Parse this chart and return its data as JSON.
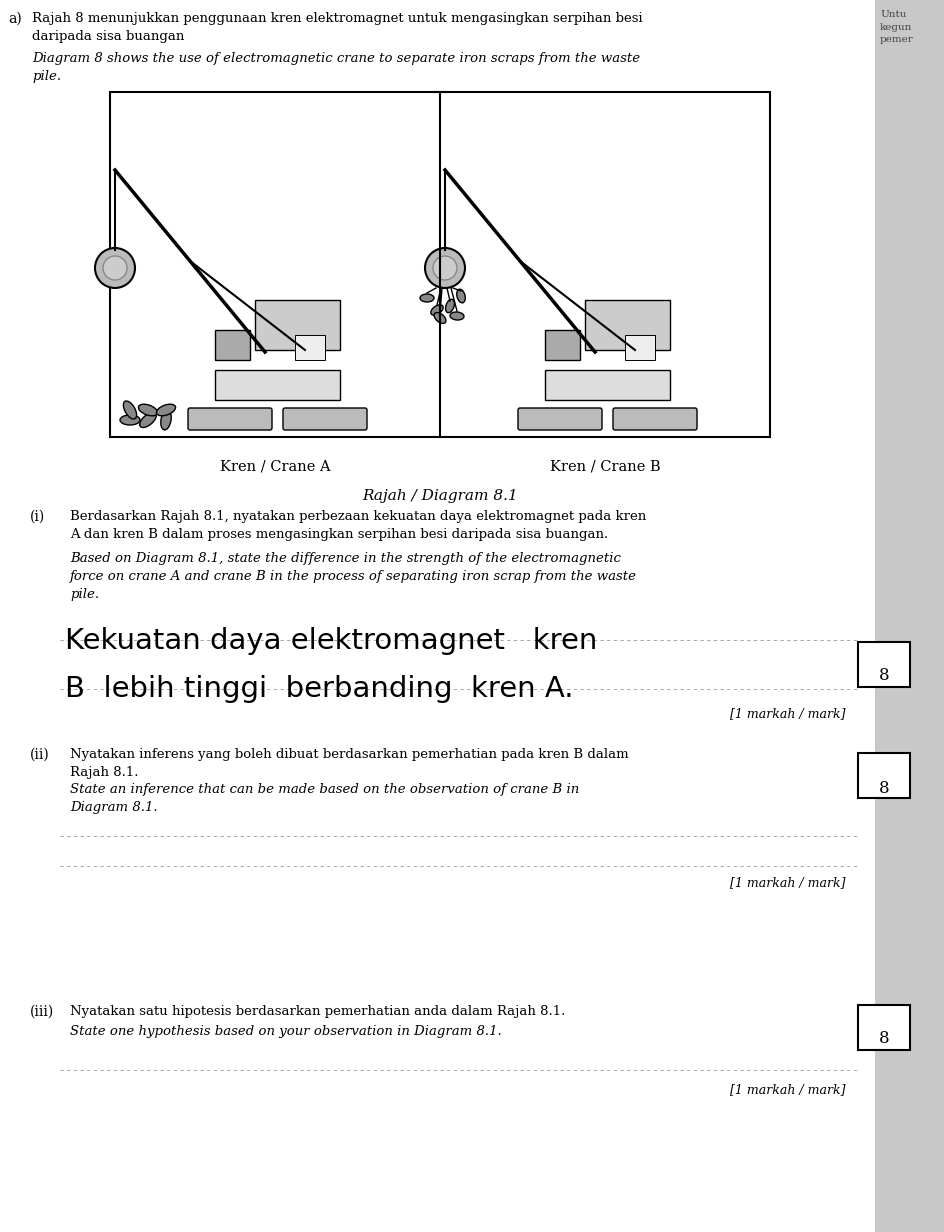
{
  "bg_color": "#d8d8d8",
  "page_bg": "#ffffff",
  "title_malay": "Rajah 8 menunjukkan penggunaan kren elektromagnet untuk mengasingkan serpihan besi\ndaripada sisa buangan",
  "title_english": "Diagram 8 shows the use of electromagnetic crane to separate iron scraps from the waste\npile.",
  "prefix": "a)",
  "sidebar_text": "Untu\nkegun\npemer",
  "diagram_label": "Rajah / Diagram 8.1",
  "crane_a_label": "Kren / Crane A",
  "crane_b_label": "Kren / Crane B",
  "q_i_num": "(i)",
  "q_i_malay": "Berdasarkan Rajah 8.1, nyatakan perbezaan kekuatan daya elektromagnet pada kren\nA dan kren B dalam proses mengasingkan serpihan besi daripada sisa buangan.",
  "q_i_english": "Based on Diagram 8.1, state the difference in the strength of the electromagnetic\nforce on crane A and crane B in the process of separating iron scrap from the waste\npile.",
  "answer_i_line1": "Kekuatan daya elektromagnet   kren",
  "answer_i_line2": "B  lebih tinggi  berbanding  kren A.",
  "mark_i": "[1 markah / mark]",
  "mark_i_box": "8",
  "q_ii_num": "(ii)",
  "q_ii_malay": "Nyatakan inferens yang boleh dibuat berdasarkan pemerhatian pada kren B dalam\nRajah 8.1.",
  "q_ii_english": "State an inference that can be made based on the observation of crane B in\nDiagram 8.1.",
  "mark_ii": "[1 markah / mark]",
  "mark_ii_box": "8",
  "q_iii_num": "(iii)",
  "q_iii_malay": "Nyatakan satu hipotesis berdasarkan pemerhatian anda dalam Rajah 8.1.",
  "q_iii_english": "State one hypothesis based on your observation in Diagram 8.1.",
  "mark_iii": "[1 markah / mark]",
  "mark_iii_box": "8"
}
